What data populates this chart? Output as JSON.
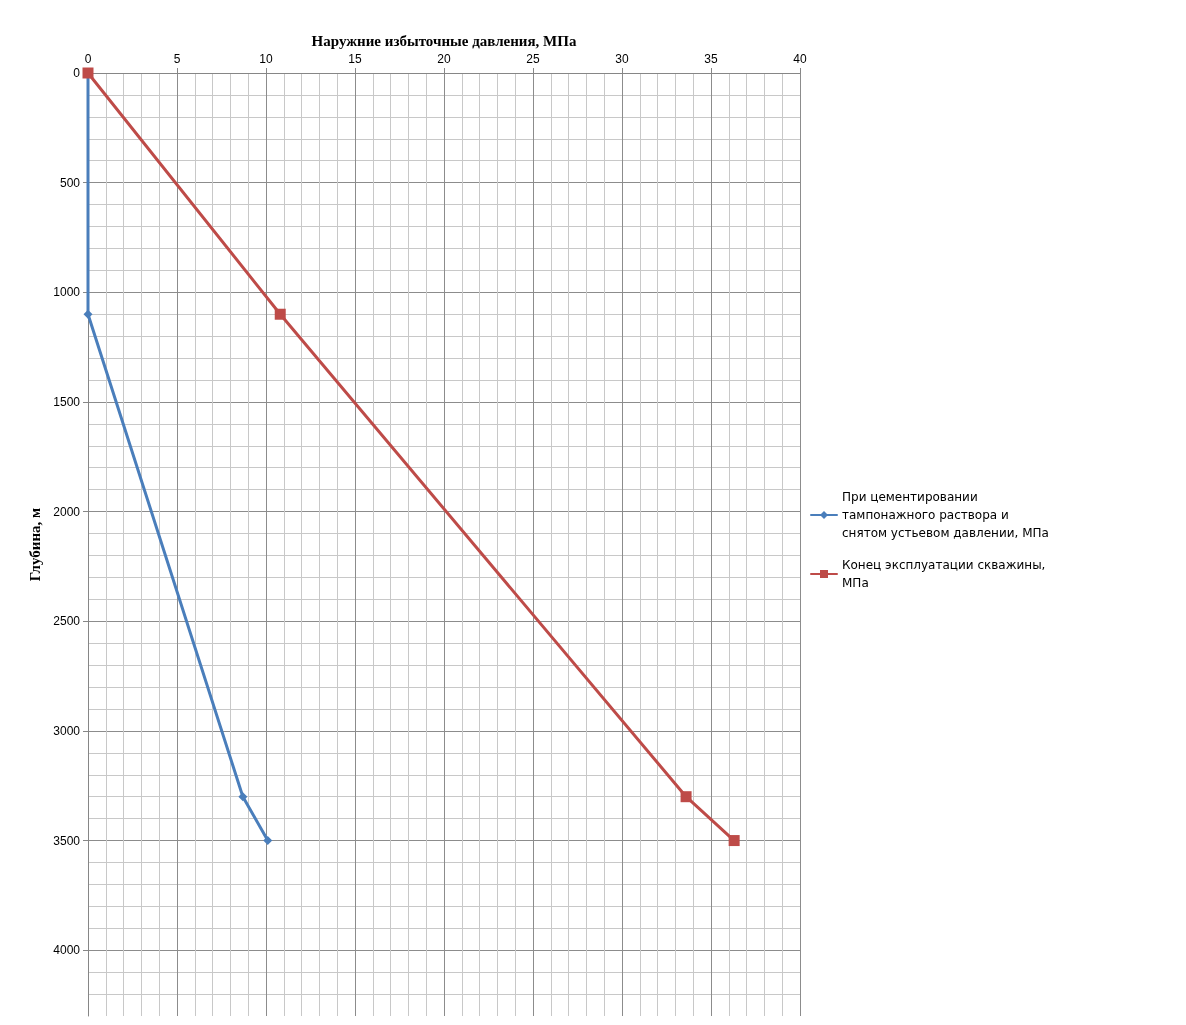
{
  "chart_data": {
    "type": "line",
    "xlabel": "Наружние избыточные давления, МПа",
    "ylabel": "Глубина, м",
    "xlim": [
      0,
      40
    ],
    "xticks": [
      0,
      5,
      10,
      15,
      20,
      25,
      30,
      35,
      40
    ],
    "ylim": [
      4300,
      0
    ],
    "yticks": [
      0,
      500,
      1000,
      1500,
      2000,
      2500,
      3000,
      3500,
      4000
    ],
    "grid": true,
    "legend": "right",
    "line_style": "solid",
    "series": [
      {
        "name": "При цементировании тампонажного раствора и снятом устьевом давлении, МПа",
        "color": "#4a7ebb",
        "marker": "diamond",
        "x": [
          0,
          0,
          8.7,
          10.1
        ],
        "values": [
          0,
          1100,
          3300,
          3500
        ]
      },
      {
        "name": "Конец эксплуатации скважины, МПа",
        "color": "#be4b48",
        "marker": "square",
        "x": [
          0,
          10.8,
          33.6,
          36.3
        ],
        "values": [
          0,
          1100,
          3300,
          3500
        ]
      }
    ]
  }
}
